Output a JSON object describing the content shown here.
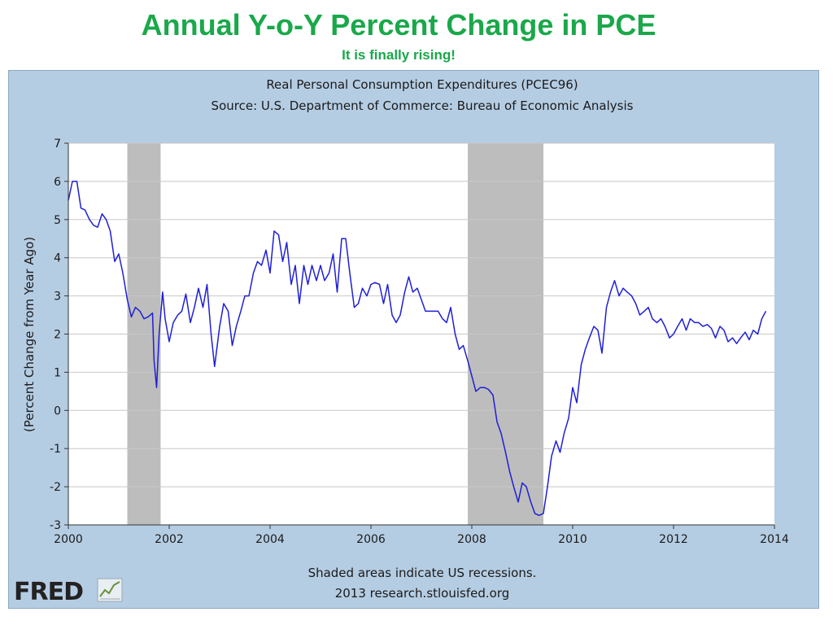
{
  "slide": {
    "title": "Annual Y-o-Y Percent Change in PCE",
    "subtitle": "It is finally rising!"
  },
  "chart_data": {
    "type": "line",
    "title": "Real Personal Consumption Expenditures (PCEC96)",
    "subtitle": "Source: U.S. Department of Commerce: Bureau of Economic Analysis",
    "xlabel": "",
    "ylabel": "(Percent Change from Year Ago)",
    "xlim": [
      2000,
      2014
    ],
    "ylim": [
      -3,
      7
    ],
    "x_ticks": [
      "2000",
      "2002",
      "2004",
      "2006",
      "2008",
      "2010",
      "2012",
      "2014"
    ],
    "y_ticks": [
      "7",
      "6",
      "5",
      "4",
      "3",
      "2",
      "1",
      "0",
      "-1",
      "-2",
      "-3"
    ],
    "grid": true,
    "line_color": "#1f1fd6",
    "recession_color": "#bdbdbd",
    "recessions": [
      [
        2001.17,
        2001.83
      ],
      [
        2007.92,
        2009.42
      ]
    ],
    "footnote": "Shaded areas indicate US recessions.",
    "credit": "2013 research.stlouisfed.org",
    "logo_text": "FRED",
    "series": [
      {
        "values": [
          [
            2000.0,
            5.5
          ],
          [
            2000.08,
            6.0
          ],
          [
            2000.17,
            6.0
          ],
          [
            2000.25,
            5.3
          ],
          [
            2000.33,
            5.25
          ],
          [
            2000.42,
            5.0
          ],
          [
            2000.5,
            4.85
          ],
          [
            2000.58,
            4.8
          ],
          [
            2000.67,
            5.15
          ],
          [
            2000.75,
            5.0
          ],
          [
            2000.83,
            4.7
          ],
          [
            2000.92,
            3.9
          ],
          [
            2001.0,
            4.1
          ],
          [
            2001.08,
            3.6
          ],
          [
            2001.17,
            2.9
          ],
          [
            2001.25,
            2.45
          ],
          [
            2001.33,
            2.7
          ],
          [
            2001.42,
            2.6
          ],
          [
            2001.5,
            2.4
          ],
          [
            2001.58,
            2.45
          ],
          [
            2001.67,
            2.55
          ],
          [
            2001.7,
            1.3
          ],
          [
            2001.75,
            0.6
          ],
          [
            2001.8,
            2.0
          ],
          [
            2001.87,
            3.1
          ],
          [
            2001.92,
            2.4
          ],
          [
            2002.0,
            1.8
          ],
          [
            2002.08,
            2.3
          ],
          [
            2002.17,
            2.5
          ],
          [
            2002.25,
            2.6
          ],
          [
            2002.33,
            3.05
          ],
          [
            2002.42,
            2.3
          ],
          [
            2002.5,
            2.7
          ],
          [
            2002.58,
            3.2
          ],
          [
            2002.67,
            2.7
          ],
          [
            2002.75,
            3.3
          ],
          [
            2002.83,
            2.0
          ],
          [
            2002.9,
            1.15
          ],
          [
            2003.0,
            2.2
          ],
          [
            2003.08,
            2.8
          ],
          [
            2003.17,
            2.6
          ],
          [
            2003.25,
            1.7
          ],
          [
            2003.33,
            2.2
          ],
          [
            2003.42,
            2.6
          ],
          [
            2003.5,
            3.0
          ],
          [
            2003.58,
            3.0
          ],
          [
            2003.67,
            3.6
          ],
          [
            2003.75,
            3.9
          ],
          [
            2003.83,
            3.8
          ],
          [
            2003.92,
            4.2
          ],
          [
            2004.0,
            3.6
          ],
          [
            2004.08,
            4.7
          ],
          [
            2004.17,
            4.6
          ],
          [
            2004.25,
            3.9
          ],
          [
            2004.33,
            4.4
          ],
          [
            2004.42,
            3.3
          ],
          [
            2004.5,
            3.8
          ],
          [
            2004.58,
            2.8
          ],
          [
            2004.67,
            3.8
          ],
          [
            2004.75,
            3.3
          ],
          [
            2004.83,
            3.8
          ],
          [
            2004.92,
            3.4
          ],
          [
            2005.0,
            3.8
          ],
          [
            2005.08,
            3.4
          ],
          [
            2005.17,
            3.6
          ],
          [
            2005.25,
            4.1
          ],
          [
            2005.33,
            3.1
          ],
          [
            2005.42,
            4.5
          ],
          [
            2005.5,
            4.5
          ],
          [
            2005.58,
            3.6
          ],
          [
            2005.67,
            2.7
          ],
          [
            2005.75,
            2.8
          ],
          [
            2005.83,
            3.2
          ],
          [
            2005.92,
            3.0
          ],
          [
            2006.0,
            3.3
          ],
          [
            2006.08,
            3.35
          ],
          [
            2006.17,
            3.3
          ],
          [
            2006.25,
            2.8
          ],
          [
            2006.33,
            3.3
          ],
          [
            2006.42,
            2.5
          ],
          [
            2006.5,
            2.3
          ],
          [
            2006.58,
            2.5
          ],
          [
            2006.67,
            3.1
          ],
          [
            2006.75,
            3.5
          ],
          [
            2006.83,
            3.1
          ],
          [
            2006.92,
            3.2
          ],
          [
            2007.0,
            2.9
          ],
          [
            2007.08,
            2.6
          ],
          [
            2007.17,
            2.6
          ],
          [
            2007.25,
            2.6
          ],
          [
            2007.33,
            2.6
          ],
          [
            2007.42,
            2.4
          ],
          [
            2007.5,
            2.3
          ],
          [
            2007.58,
            2.7
          ],
          [
            2007.67,
            2.0
          ],
          [
            2007.75,
            1.6
          ],
          [
            2007.83,
            1.7
          ],
          [
            2007.92,
            1.3
          ],
          [
            2008.0,
            0.9
          ],
          [
            2008.08,
            0.5
          ],
          [
            2008.17,
            0.6
          ],
          [
            2008.25,
            0.6
          ],
          [
            2008.33,
            0.55
          ],
          [
            2008.42,
            0.4
          ],
          [
            2008.5,
            -0.3
          ],
          [
            2008.58,
            -0.6
          ],
          [
            2008.67,
            -1.1
          ],
          [
            2008.75,
            -1.6
          ],
          [
            2008.83,
            -2.0
          ],
          [
            2008.92,
            -2.4
          ],
          [
            2009.0,
            -1.9
          ],
          [
            2009.08,
            -2.0
          ],
          [
            2009.17,
            -2.4
          ],
          [
            2009.25,
            -2.7
          ],
          [
            2009.33,
            -2.75
          ],
          [
            2009.42,
            -2.7
          ],
          [
            2009.5,
            -2.0
          ],
          [
            2009.58,
            -1.2
          ],
          [
            2009.67,
            -0.8
          ],
          [
            2009.75,
            -1.1
          ],
          [
            2009.83,
            -0.6
          ],
          [
            2009.92,
            -0.2
          ],
          [
            2010.0,
            0.6
          ],
          [
            2010.08,
            0.2
          ],
          [
            2010.17,
            1.2
          ],
          [
            2010.25,
            1.6
          ],
          [
            2010.33,
            1.9
          ],
          [
            2010.42,
            2.2
          ],
          [
            2010.5,
            2.1
          ],
          [
            2010.58,
            1.5
          ],
          [
            2010.67,
            2.7
          ],
          [
            2010.75,
            3.1
          ],
          [
            2010.83,
            3.4
          ],
          [
            2010.92,
            3.0
          ],
          [
            2011.0,
            3.2
          ],
          [
            2011.08,
            3.1
          ],
          [
            2011.17,
            3.0
          ],
          [
            2011.25,
            2.8
          ],
          [
            2011.33,
            2.5
          ],
          [
            2011.42,
            2.6
          ],
          [
            2011.5,
            2.7
          ],
          [
            2011.58,
            2.4
          ],
          [
            2011.67,
            2.3
          ],
          [
            2011.75,
            2.4
          ],
          [
            2011.83,
            2.2
          ],
          [
            2011.92,
            1.9
          ],
          [
            2012.0,
            2.0
          ],
          [
            2012.08,
            2.2
          ],
          [
            2012.17,
            2.4
          ],
          [
            2012.25,
            2.1
          ],
          [
            2012.33,
            2.4
          ],
          [
            2012.42,
            2.3
          ],
          [
            2012.5,
            2.3
          ],
          [
            2012.58,
            2.2
          ],
          [
            2012.67,
            2.25
          ],
          [
            2012.75,
            2.15
          ],
          [
            2012.83,
            1.9
          ],
          [
            2012.92,
            2.2
          ],
          [
            2013.0,
            2.1
          ],
          [
            2013.08,
            1.8
          ],
          [
            2013.17,
            1.9
          ],
          [
            2013.25,
            1.75
          ],
          [
            2013.33,
            1.9
          ],
          [
            2013.42,
            2.05
          ],
          [
            2013.5,
            1.85
          ],
          [
            2013.58,
            2.1
          ],
          [
            2013.67,
            2.0
          ],
          [
            2013.75,
            2.4
          ],
          [
            2013.83,
            2.6
          ]
        ]
      }
    ]
  }
}
